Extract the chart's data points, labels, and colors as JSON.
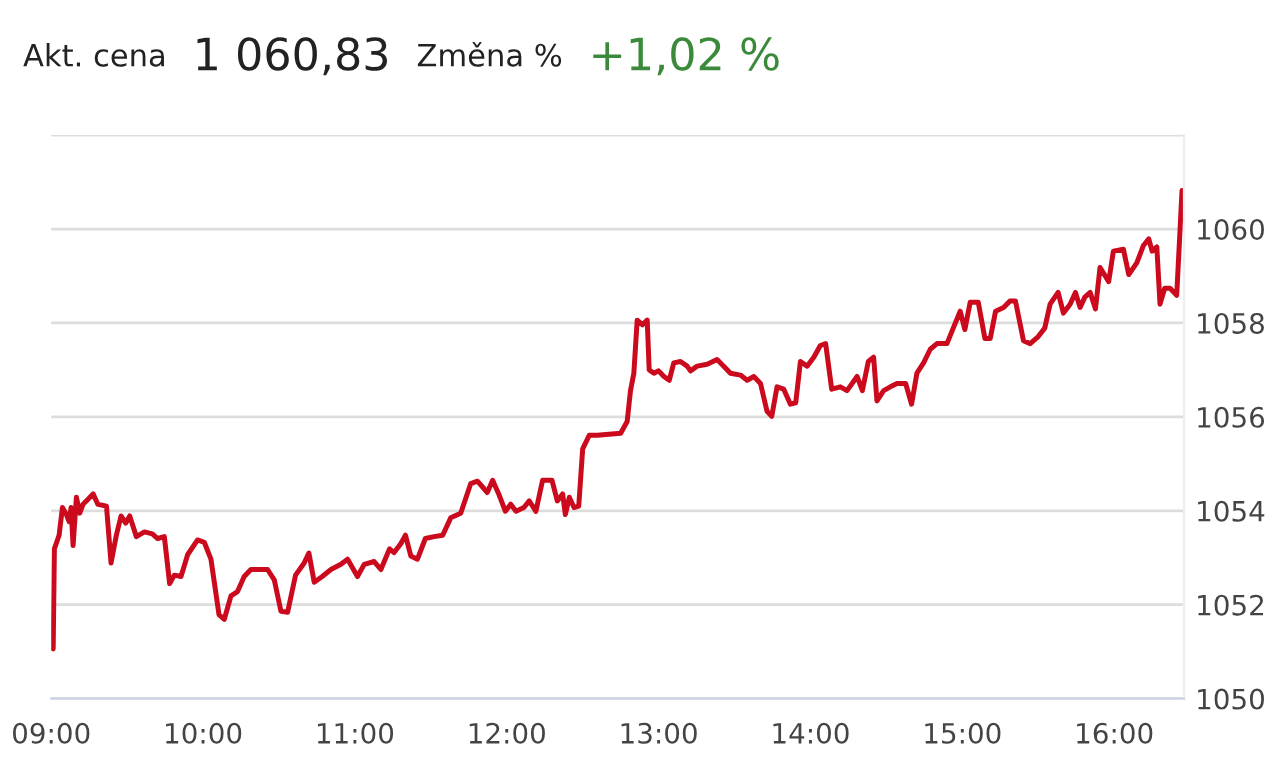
{
  "chart_data": {
    "type": "line",
    "annotations": [
      "Akt. cena",
      "1 060,83",
      "Změna %",
      "+1,02 %"
    ],
    "xlim": [
      9,
      16.46
    ],
    "xticks": [
      {
        "value": 9,
        "label": "09:00"
      },
      {
        "value": 10,
        "label": "10:00"
      },
      {
        "value": 11,
        "label": "11:00"
      },
      {
        "value": 12,
        "label": "12:00"
      },
      {
        "value": 13,
        "label": "13:00"
      },
      {
        "value": 14,
        "label": "14:00"
      },
      {
        "value": 15,
        "label": "15:00"
      },
      {
        "value": 16,
        "label": "16:00"
      }
    ],
    "ylim": [
      1050,
      1062
    ],
    "yticks": [
      1050,
      1052,
      1054,
      1056,
      1058,
      1060,
      {
        "value": 1062,
        "label": null
      }
    ],
    "grid": "y",
    "legend": false,
    "marker": "none",
    "line_style": "solid",
    "series": [
      {
        "color": "#cc0a1e",
        "x": [
          9.013,
          9.021,
          9.052,
          9.074,
          9.1,
          9.118,
          9.131,
          9.144,
          9.166,
          9.188,
          9.21,
          9.241,
          9.276,
          9.307,
          9.364,
          9.394,
          9.429,
          9.46,
          9.491,
          9.517,
          9.561,
          9.614,
          9.666,
          9.701,
          9.745,
          9.78,
          9.811,
          9.855,
          9.899,
          9.964,
          10.008,
          10.052,
          10.105,
          10.14,
          10.184,
          10.227,
          10.271,
          10.315,
          10.381,
          10.425,
          10.469,
          10.513,
          10.557,
          10.609,
          10.666,
          10.697,
          10.732,
          10.785,
          10.842,
          10.908,
          10.952,
          11.017,
          11.061,
          11.127,
          11.171,
          11.228,
          11.258,
          11.302,
          11.333,
          11.368,
          11.412,
          11.464,
          11.521,
          11.578,
          11.631,
          11.697,
          11.763,
          11.807,
          11.872,
          11.907,
          11.947,
          11.991,
          12.026,
          12.061,
          12.113,
          12.148,
          12.192,
          12.236,
          12.298,
          12.333,
          12.368,
          12.386,
          12.412,
          12.443,
          12.474,
          12.5,
          12.544,
          12.596,
          12.75,
          12.793,
          12.815,
          12.837,
          12.859,
          12.894,
          12.925,
          12.938,
          12.969,
          13.0,
          13.035,
          13.07,
          13.1,
          13.144,
          13.188,
          13.21,
          13.254,
          13.32,
          13.385,
          13.429,
          13.473,
          13.539,
          13.583,
          13.627,
          13.671,
          13.714,
          13.745,
          13.78,
          13.824,
          13.868,
          13.903,
          13.934,
          13.978,
          14.022,
          14.065,
          14.1,
          14.14,
          14.197,
          14.241,
          14.307,
          14.342,
          14.381,
          14.416,
          14.438,
          14.482,
          14.526,
          14.57,
          14.627,
          14.666,
          14.701,
          14.745,
          14.789,
          14.833,
          14.899,
          14.943,
          14.986,
          15.017,
          15.052,
          15.105,
          15.149,
          15.184,
          15.219,
          15.272,
          15.315,
          15.35,
          15.403,
          15.447,
          15.5,
          15.543,
          15.578,
          15.631,
          15.666,
          15.71,
          15.745,
          15.776,
          15.807,
          15.842,
          15.877,
          15.907,
          15.964,
          15.995,
          16.061,
          16.096,
          16.149,
          16.193,
          16.228,
          16.25,
          16.281,
          16.302,
          16.333,
          16.368,
          16.412,
          16.447
        ],
        "values": [
          1051.06,
          1053.19,
          1053.48,
          1054.07,
          1053.92,
          1053.77,
          1054.07,
          1053.26,
          1054.29,
          1053.95,
          1054.14,
          1054.24,
          1054.36,
          1054.14,
          1054.1,
          1052.89,
          1053.48,
          1053.89,
          1053.74,
          1053.89,
          1053.45,
          1053.55,
          1053.51,
          1053.41,
          1053.45,
          1052.45,
          1052.63,
          1052.6,
          1053.07,
          1053.38,
          1053.33,
          1052.97,
          1051.79,
          1051.69,
          1052.19,
          1052.28,
          1052.6,
          1052.75,
          1052.75,
          1052.75,
          1052.53,
          1051.86,
          1051.84,
          1052.63,
          1052.89,
          1053.1,
          1052.48,
          1052.6,
          1052.75,
          1052.86,
          1052.97,
          1052.6,
          1052.86,
          1052.92,
          1052.75,
          1053.19,
          1053.11,
          1053.3,
          1053.48,
          1053.04,
          1052.97,
          1053.41,
          1053.45,
          1053.48,
          1053.85,
          1053.95,
          1054.58,
          1054.63,
          1054.39,
          1054.65,
          1054.36,
          1053.99,
          1054.14,
          1053.99,
          1054.07,
          1054.21,
          1053.99,
          1054.65,
          1054.65,
          1054.21,
          1054.36,
          1053.92,
          1054.29,
          1054.07,
          1054.1,
          1055.32,
          1055.61,
          1055.61,
          1055.65,
          1055.9,
          1056.56,
          1056.93,
          1058.06,
          1057.96,
          1058.06,
          1057.0,
          1056.93,
          1056.98,
          1056.86,
          1056.78,
          1057.15,
          1057.18,
          1057.08,
          1056.98,
          1057.08,
          1057.12,
          1057.22,
          1057.08,
          1056.93,
          1056.89,
          1056.78,
          1056.86,
          1056.71,
          1056.12,
          1056.01,
          1056.64,
          1056.59,
          1056.27,
          1056.3,
          1057.18,
          1057.08,
          1057.27,
          1057.52,
          1057.56,
          1056.59,
          1056.64,
          1056.56,
          1056.86,
          1056.56,
          1057.18,
          1057.27,
          1056.34,
          1056.56,
          1056.64,
          1056.71,
          1056.71,
          1056.27,
          1056.93,
          1057.15,
          1057.44,
          1057.56,
          1057.56,
          1057.91,
          1058.25,
          1057.86,
          1058.44,
          1058.44,
          1057.67,
          1057.67,
          1058.25,
          1058.33,
          1058.47,
          1058.47,
          1057.62,
          1057.56,
          1057.71,
          1057.89,
          1058.4,
          1058.65,
          1058.21,
          1058.4,
          1058.65,
          1058.33,
          1058.55,
          1058.65,
          1058.3,
          1059.18,
          1058.88,
          1059.53,
          1059.57,
          1059.03,
          1059.28,
          1059.65,
          1059.79,
          1059.53,
          1059.62,
          1058.4,
          1058.74,
          1058.74,
          1058.59,
          1060.82
        ]
      }
    ]
  }
}
